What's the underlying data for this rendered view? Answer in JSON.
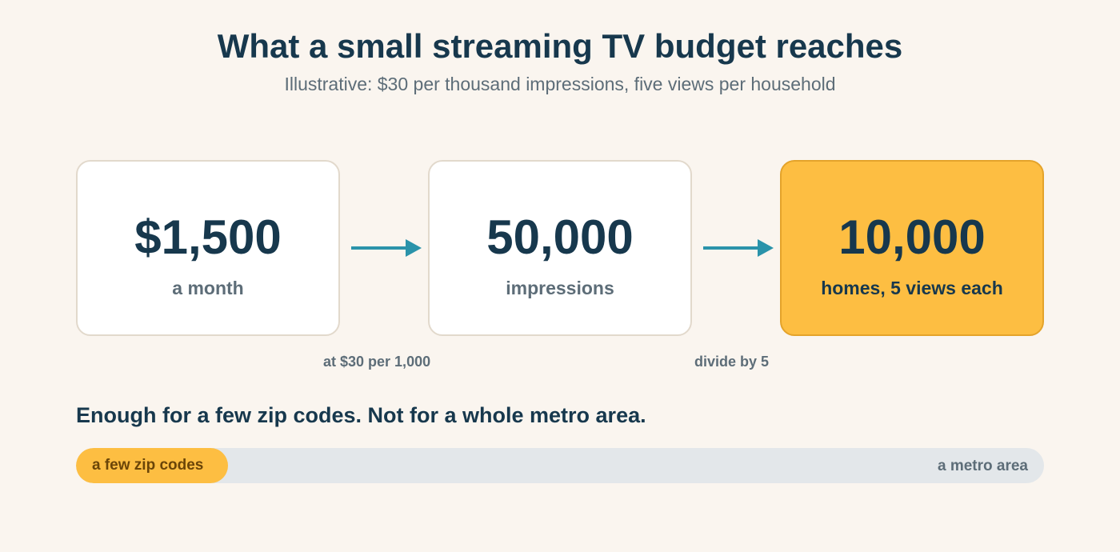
{
  "header": {
    "title": "What a small streaming TV budget reaches",
    "subtitle": "Illustrative: $30 per thousand impressions, five views per household"
  },
  "flow": {
    "steps": [
      {
        "value": "$1,500",
        "label": "a month"
      },
      {
        "value": "50,000",
        "label": "impressions"
      },
      {
        "value": "10,000",
        "label": "homes, 5 views each"
      }
    ],
    "notes": [
      "at $30 per 1,000",
      "divide by 5"
    ]
  },
  "comparison": {
    "headline": "Enough for a few zip codes. Not for a whole metro area.",
    "filled_label": "a few zip codes",
    "end_label": "a metro area",
    "fill_fraction": 0.157
  },
  "colors": {
    "accent": "#fdbe42",
    "arrow": "#2a93aa",
    "text_dark": "#17384d",
    "text_muted": "#5d6d78",
    "track": "#e3e7ea"
  }
}
